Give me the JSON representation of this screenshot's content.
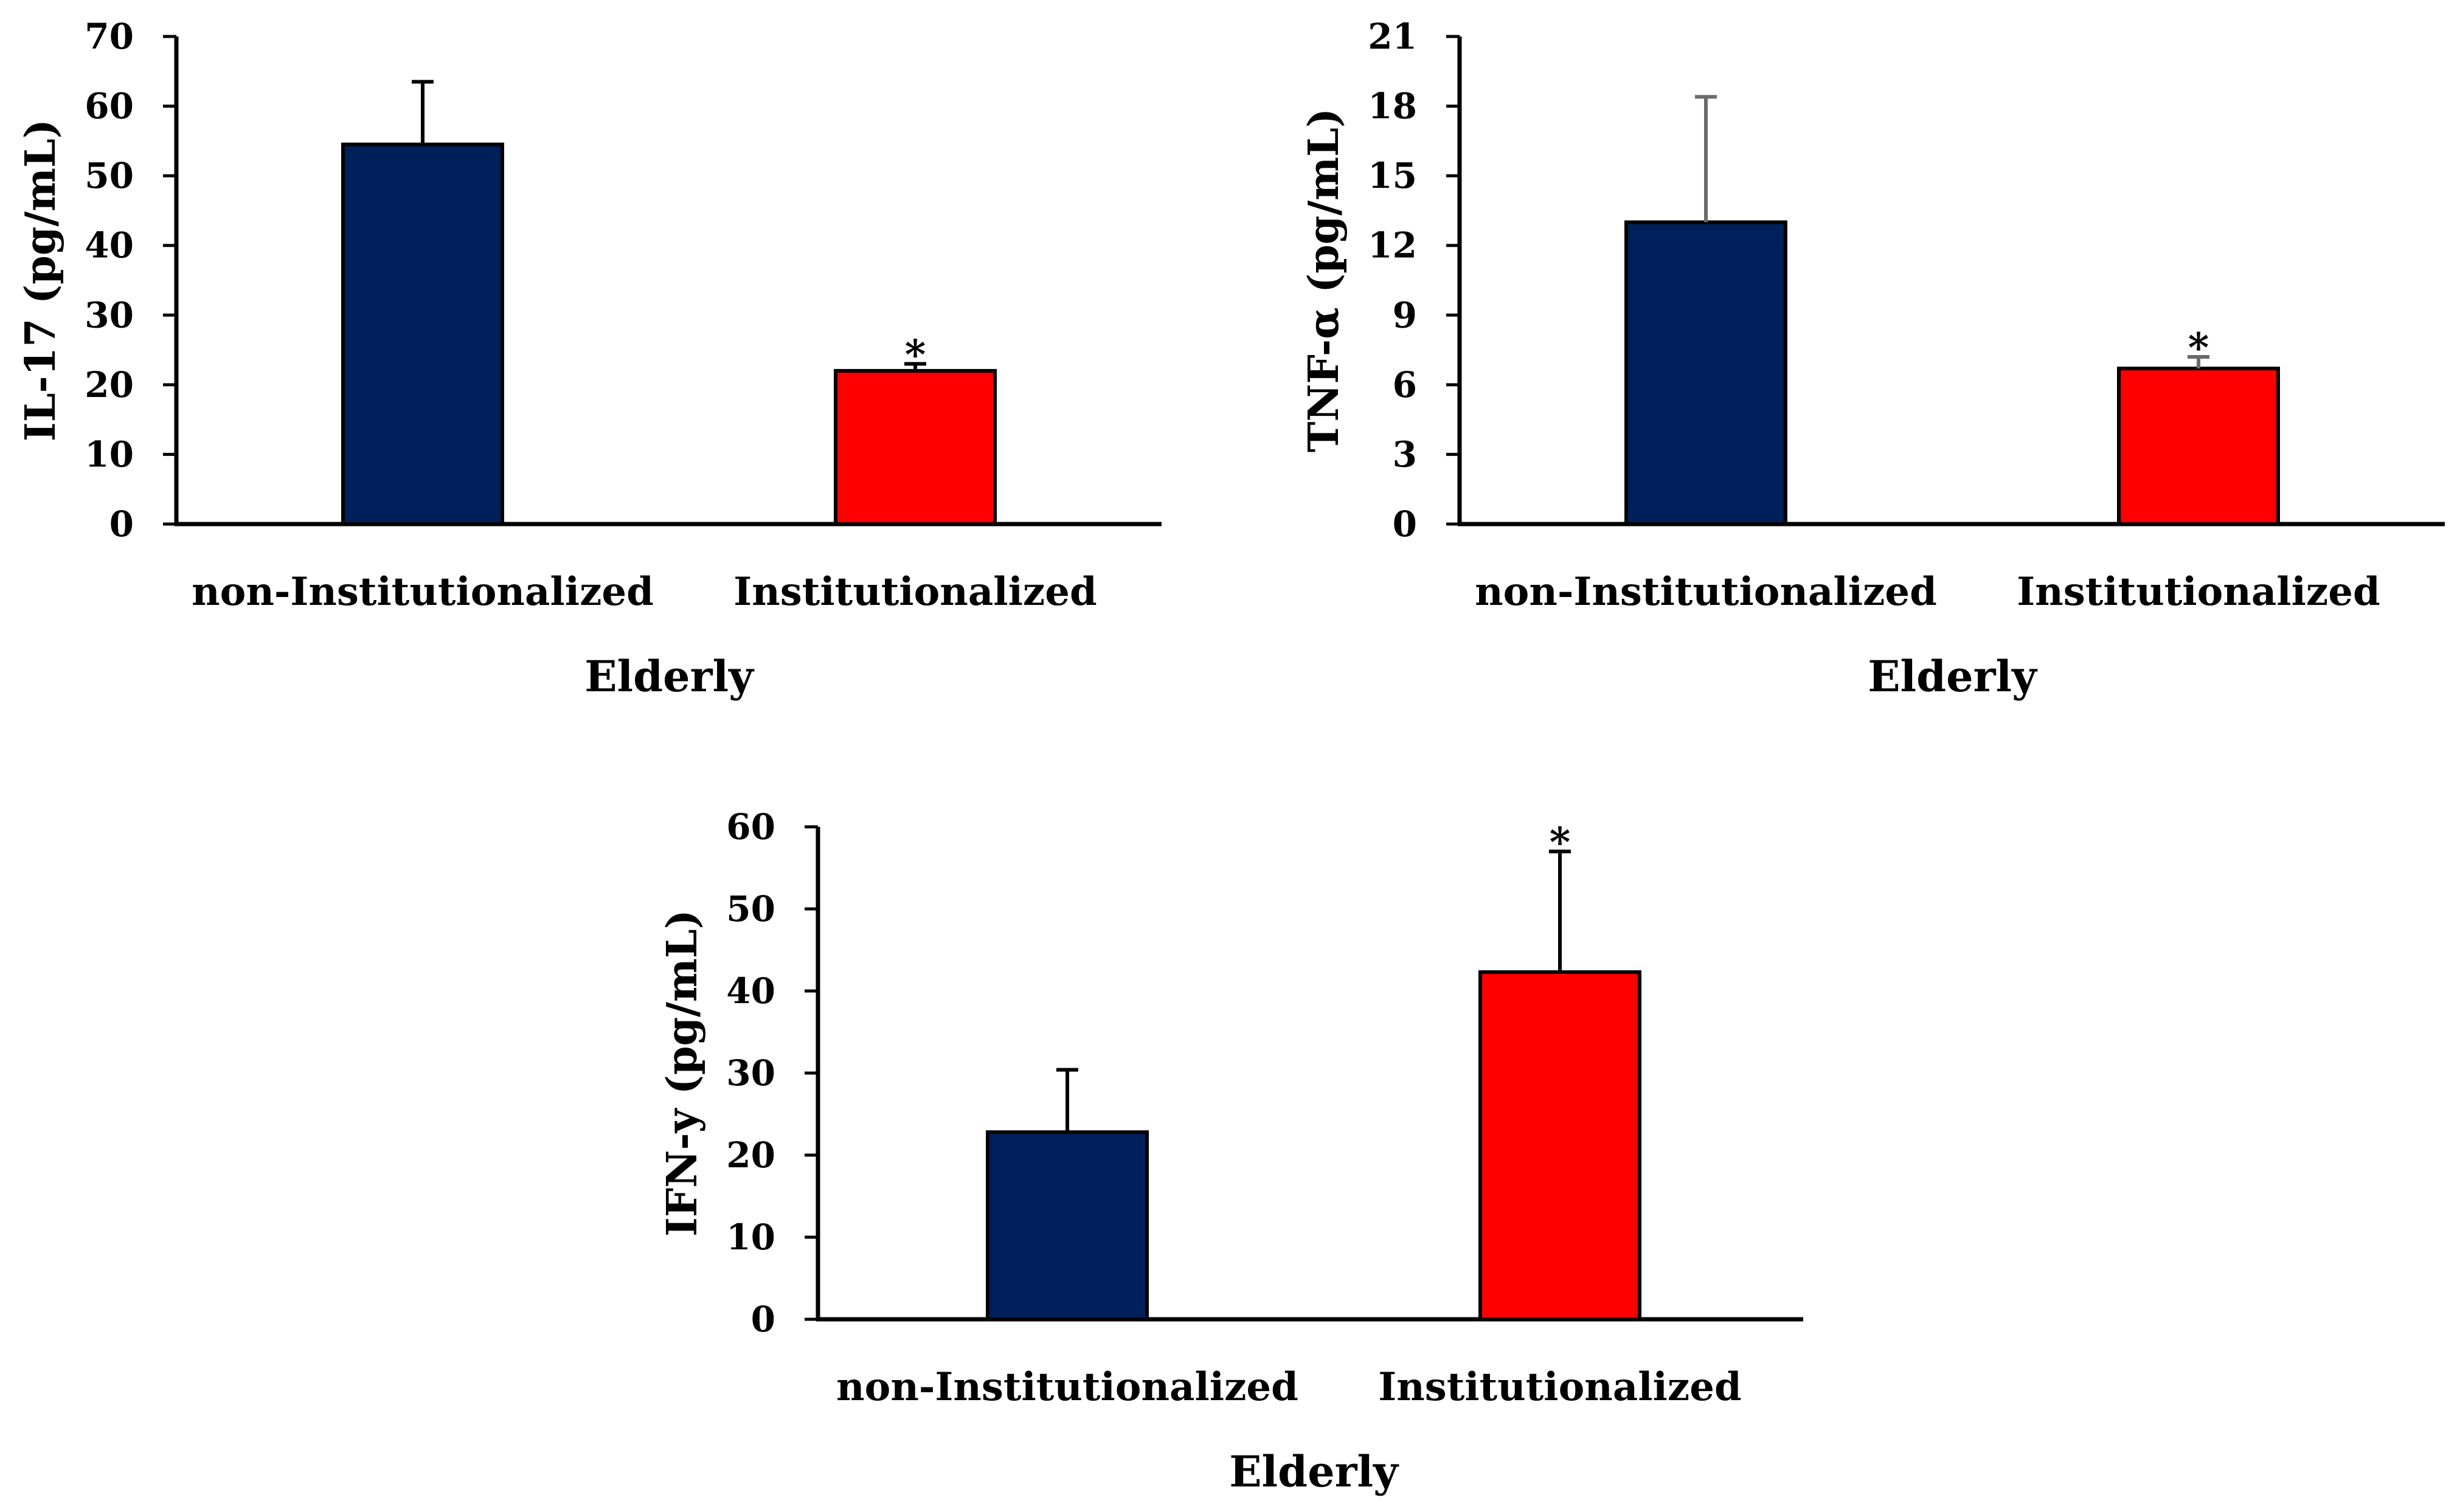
{
  "chart_data": [
    {
      "type": "bar",
      "categories": [
        "non-Institutionalized",
        "Institutionalized"
      ],
      "values": [
        54.5,
        22
      ],
      "error": [
        9,
        1
      ],
      "significance": [
        "",
        "*"
      ],
      "xlabel": "Elderly",
      "ylabel": "IL-17 (pg/mL)",
      "ylim": [
        0,
        70
      ],
      "yticks": [
        "0",
        "10",
        "20",
        "30",
        "40",
        "50",
        "60",
        "70"
      ],
      "bar_colors": [
        "#00205b",
        "#ff0000"
      ],
      "error_color": "#000000",
      "grid": false,
      "legend": "none"
    },
    {
      "type": "bar",
      "categories": [
        "non-Institutionalized",
        "Institutionalized"
      ],
      "values": [
        13,
        6.7
      ],
      "error": [
        5.4,
        0.5
      ],
      "significance": [
        "",
        "*"
      ],
      "xlabel": "Elderly",
      "ylabel": "TNF-α (pg/mL)",
      "ylim": [
        0,
        21
      ],
      "yticks": [
        "0",
        "3",
        "6",
        "9",
        "12",
        "15",
        "18",
        "21"
      ],
      "bar_colors": [
        "#00205b",
        "#ff0000"
      ],
      "error_color": "#6a6a6a",
      "grid": false,
      "legend": "none"
    },
    {
      "type": "bar",
      "categories": [
        "non-Institutionalized",
        "Institutionalized"
      ],
      "values": [
        22.8,
        42.3
      ],
      "error": [
        7.6,
        14.7
      ],
      "significance": [
        "",
        "*"
      ],
      "xlabel": "Elderly",
      "ylabel": "IFN-y (pg/mL)",
      "ylim": [
        0,
        60
      ],
      "yticks": [
        "0",
        "10",
        "20",
        "30",
        "40",
        "50",
        "60"
      ],
      "bar_colors": [
        "#00205b",
        "#ff0000"
      ],
      "error_color": "#000000",
      "grid": false,
      "legend": "none"
    }
  ]
}
